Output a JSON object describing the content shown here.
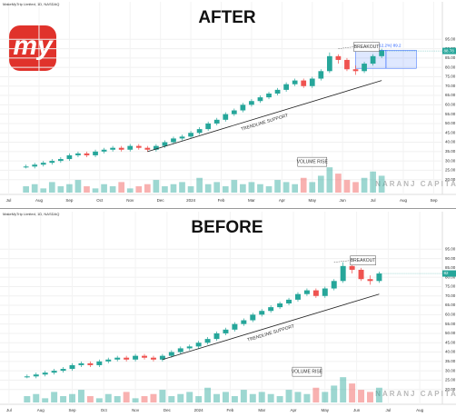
{
  "logo": "my",
  "watermark": "NARANJ CAPITAL",
  "chart_data": [
    {
      "type": "candlestick",
      "title": "AFTER",
      "subtitle": "MakeMyTrip Limited, 1D, NASDAQ",
      "candles": {
        "open": [
          26.5,
          27,
          28,
          29,
          30,
          31,
          33,
          34,
          33,
          35,
          36,
          37,
          36,
          38,
          37,
          36,
          38,
          40,
          42,
          43,
          45,
          47,
          50,
          52,
          55,
          57,
          60,
          62,
          64,
          66,
          68,
          71,
          73,
          70,
          74,
          78,
          86,
          84,
          79,
          78,
          82,
          86
        ],
        "high": [
          28,
          29,
          30,
          31,
          32,
          34,
          35,
          35,
          36,
          37,
          38,
          38,
          39,
          39,
          38,
          39,
          41,
          43,
          44,
          46,
          48,
          51,
          53,
          56,
          58,
          61,
          63,
          65,
          67,
          69,
          72,
          74,
          74,
          75,
          79,
          88,
          87,
          85,
          81,
          83,
          87,
          90
        ],
        "low": [
          26,
          26,
          27,
          28,
          29,
          30,
          32,
          32,
          32,
          34,
          35,
          35,
          35,
          36,
          35,
          35,
          37,
          39,
          41,
          42,
          44,
          46,
          49,
          51,
          54,
          56,
          59,
          61,
          63,
          65,
          67,
          70,
          69,
          69,
          73,
          77,
          82,
          78,
          76,
          77,
          81,
          85
        ],
        "close": [
          27,
          28,
          29,
          30,
          31,
          33,
          34,
          33,
          35,
          36,
          37,
          36,
          38,
          37,
          36,
          38,
          40,
          42,
          43,
          45,
          47,
          50,
          52,
          55,
          57,
          60,
          62,
          64,
          66,
          68,
          71,
          73,
          70,
          74,
          78,
          86,
          84,
          79,
          78,
          82,
          86,
          89
        ]
      },
      "volume": [
        3,
        4,
        2,
        5,
        3,
        4,
        6,
        3,
        2,
        4,
        3,
        5,
        2,
        3,
        4,
        6,
        3,
        4,
        5,
        3,
        7,
        4,
        5,
        3,
        6,
        4,
        5,
        4,
        3,
        6,
        5,
        4,
        7,
        5,
        8,
        12,
        9,
        6,
        5,
        7,
        10,
        8
      ],
      "vlim": [
        0,
        25
      ],
      "xlim": [
        -3,
        48
      ],
      "xticks": [
        {
          "value": -2,
          "label": "Jul"
        },
        {
          "value": 1.5,
          "label": "Aug"
        },
        {
          "value": 5,
          "label": "Sep"
        },
        {
          "value": 8.5,
          "label": "Oct"
        },
        {
          "value": 12,
          "label": "Nov"
        },
        {
          "value": 15.5,
          "label": "Dec"
        },
        {
          "value": 19,
          "label": "2024"
        },
        {
          "value": 22.5,
          "label": "Feb"
        },
        {
          "value": 26,
          "label": "Mar"
        },
        {
          "value": 29.5,
          "label": "Apr"
        },
        {
          "value": 33,
          "label": "May"
        },
        {
          "value": 36.5,
          "label": "Jun"
        },
        {
          "value": 40,
          "label": "Jul"
        },
        {
          "value": 43.5,
          "label": "Aug"
        },
        {
          "value": 47,
          "label": "Sep"
        }
      ],
      "ylim": [
        15,
        100
      ],
      "yticks": [
        {
          "value": 20,
          "label": "20.00"
        },
        {
          "value": 25,
          "label": "25.00"
        },
        {
          "value": 30,
          "label": "30.00"
        },
        {
          "value": 35,
          "label": "35.00"
        },
        {
          "value": 40,
          "label": "40.00"
        },
        {
          "value": 45,
          "label": "45.00"
        },
        {
          "value": 50,
          "label": "50.00"
        },
        {
          "value": 55,
          "label": "55.00"
        },
        {
          "value": 60,
          "label": "60.00"
        },
        {
          "value": 65,
          "label": "65.00"
        },
        {
          "value": 70,
          "label": "70.00"
        },
        {
          "value": 75,
          "label": "75.00"
        },
        {
          "value": 80,
          "label": "80.00"
        },
        {
          "value": 85,
          "label": "85.00"
        },
        {
          "value": 90,
          "label": "90.00"
        },
        {
          "value": 95,
          "label": "95.00"
        }
      ],
      "last": 88.78,
      "trendline": {
        "label": "TRENDLINE SUPPORT",
        "start": [
          14,
          35
        ],
        "end": [
          41,
          73
        ]
      },
      "breakout": "BREAKOUT",
      "volume_note": "VOLUME RISE",
      "projection": {
        "label": "9.7 (12.2%) 89.2",
        "low": 79.5,
        "high": 89.2
      }
    },
    {
      "type": "candlestick",
      "title": "BEFORE",
      "subtitle": "MakeMyTrip Limited, 1D, NASDAQ",
      "candles": {
        "open": [
          26.5,
          27,
          28,
          29,
          30,
          31,
          33,
          34,
          33,
          35,
          36,
          37,
          36,
          38,
          37,
          36,
          38,
          40,
          42,
          43,
          45,
          47,
          50,
          52,
          55,
          57,
          60,
          62,
          64,
          66,
          68,
          71,
          73,
          70,
          74,
          78,
          86,
          84,
          79,
          78
        ],
        "high": [
          28,
          29,
          30,
          31,
          32,
          34,
          35,
          35,
          36,
          37,
          38,
          38,
          39,
          39,
          38,
          39,
          41,
          43,
          44,
          46,
          48,
          51,
          53,
          56,
          58,
          61,
          63,
          65,
          67,
          69,
          72,
          74,
          74,
          75,
          79,
          88,
          87,
          85,
          81,
          83
        ],
        "low": [
          26,
          26,
          27,
          28,
          29,
          30,
          32,
          32,
          32,
          34,
          35,
          35,
          35,
          36,
          35,
          35,
          37,
          39,
          41,
          42,
          44,
          46,
          49,
          51,
          54,
          56,
          59,
          61,
          63,
          65,
          67,
          70,
          69,
          69,
          73,
          77,
          82,
          78,
          76,
          77
        ],
        "close": [
          27,
          28,
          29,
          30,
          31,
          33,
          34,
          33,
          35,
          36,
          37,
          36,
          38,
          37,
          36,
          38,
          40,
          42,
          43,
          45,
          47,
          50,
          52,
          55,
          57,
          60,
          62,
          64,
          66,
          68,
          71,
          73,
          70,
          74,
          78,
          86,
          84,
          79,
          78,
          82
        ]
      },
      "volume": [
        3,
        4,
        2,
        5,
        3,
        4,
        6,
        3,
        2,
        4,
        3,
        5,
        2,
        3,
        4,
        6,
        3,
        4,
        5,
        3,
        7,
        4,
        5,
        3,
        6,
        4,
        5,
        4,
        3,
        6,
        5,
        4,
        7,
        5,
        8,
        12,
        9,
        6,
        5,
        7
      ],
      "vlim": [
        0,
        25
      ],
      "xlim": [
        -3,
        46
      ],
      "xticks": [
        {
          "value": -2,
          "label": "Jul"
        },
        {
          "value": 1.5,
          "label": "Aug"
        },
        {
          "value": 5,
          "label": "Sep"
        },
        {
          "value": 8.5,
          "label": "Oct"
        },
        {
          "value": 12,
          "label": "Nov"
        },
        {
          "value": 15.5,
          "label": "Dec"
        },
        {
          "value": 19,
          "label": "2024"
        },
        {
          "value": 22.5,
          "label": "Feb"
        },
        {
          "value": 26,
          "label": "Mar"
        },
        {
          "value": 29.5,
          "label": "Apr"
        },
        {
          "value": 33,
          "label": "May"
        },
        {
          "value": 36.5,
          "label": "Jun"
        },
        {
          "value": 40,
          "label": "Jul"
        },
        {
          "value": 43.5,
          "label": "Aug"
        }
      ],
      "ylim": [
        15,
        100
      ],
      "yticks": [
        {
          "value": 20,
          "label": "20.00"
        },
        {
          "value": 25,
          "label": "25.00"
        },
        {
          "value": 30,
          "label": "30.00"
        },
        {
          "value": 35,
          "label": "35.00"
        },
        {
          "value": 40,
          "label": "40.00"
        },
        {
          "value": 45,
          "label": "45.00"
        },
        {
          "value": 50,
          "label": "50.00"
        },
        {
          "value": 55,
          "label": "55.00"
        },
        {
          "value": 60,
          "label": "60.00"
        },
        {
          "value": 65,
          "label": "65.00"
        },
        {
          "value": 70,
          "label": "70.00"
        },
        {
          "value": 75,
          "label": "75.00"
        },
        {
          "value": 80,
          "label": "80.00"
        },
        {
          "value": 85,
          "label": "85.00"
        },
        {
          "value": 90,
          "label": "90.00"
        },
        {
          "value": 95,
          "label": "95.00"
        }
      ],
      "last": 82,
      "trendline": {
        "label": "TRENDLINE SUPPORT",
        "start": [
          15,
          36
        ],
        "end": [
          39,
          71
        ]
      },
      "breakout": "BREAKOUT",
      "volume_note": "VOLUME RISE"
    }
  ]
}
